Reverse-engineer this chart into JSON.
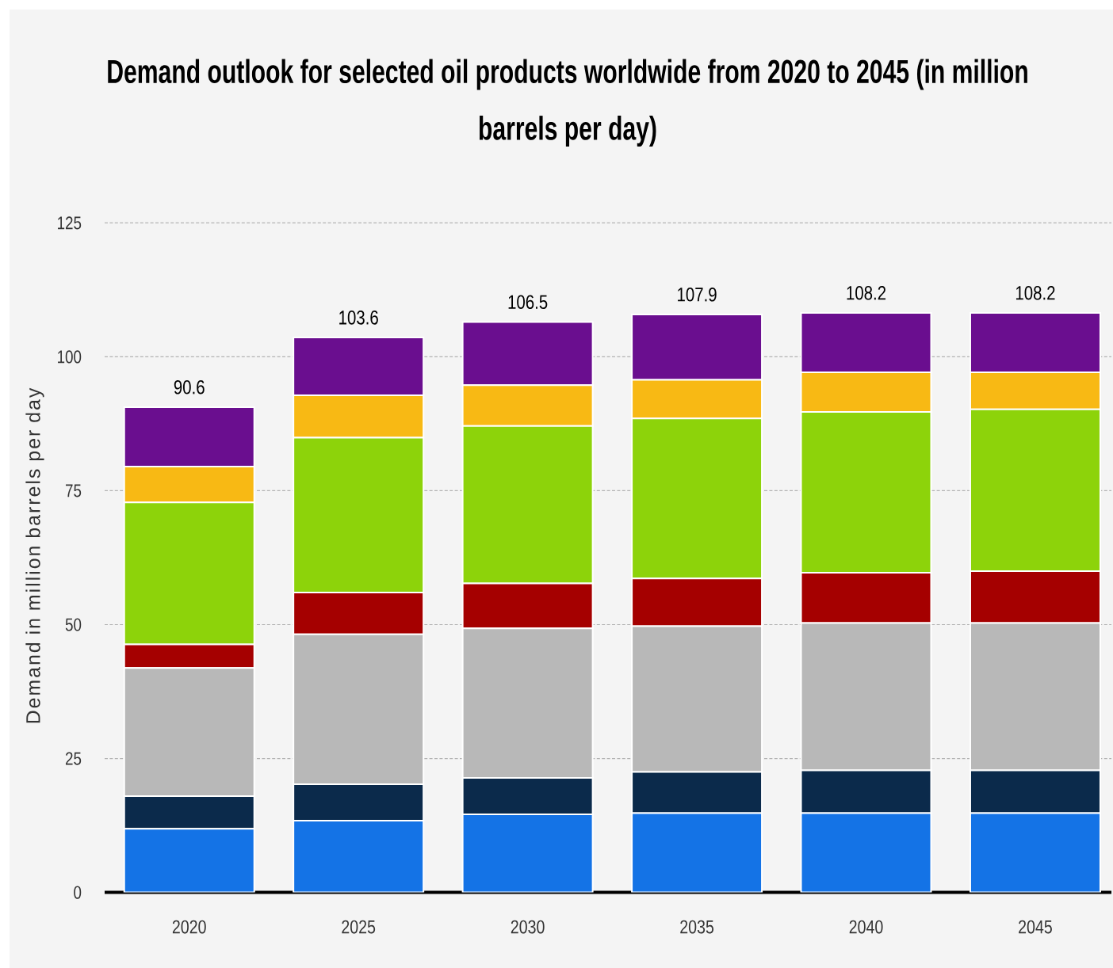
{
  "chart_data": {
    "type": "bar",
    "stacked": true,
    "title": "Demand outlook for selected oil products worldwide from 2020 to 2045 (in million barrels per day)",
    "ylabel": "Demand in million barrels per day",
    "categories": [
      "2020",
      "2025",
      "2030",
      "2035",
      "2040",
      "2045"
    ],
    "series": [
      {
        "color": "#1473e6",
        "values": [
          11.9,
          13.4,
          14.6,
          14.8,
          14.8,
          14.8
        ]
      },
      {
        "color": "#0b2a4b",
        "values": [
          6.1,
          6.8,
          6.8,
          7.7,
          8.0,
          8.0
        ]
      },
      {
        "color": "#b8b8b8",
        "values": [
          23.9,
          28.0,
          27.9,
          27.2,
          27.5,
          27.5
        ]
      },
      {
        "color": "#a50000",
        "values": [
          4.4,
          7.8,
          8.4,
          8.9,
          9.4,
          9.7
        ]
      },
      {
        "color": "#8dd30a",
        "values": [
          26.5,
          28.9,
          29.4,
          29.9,
          30.0,
          30.2
        ]
      },
      {
        "color": "#f8b914",
        "values": [
          6.7,
          7.9,
          7.6,
          7.2,
          7.4,
          6.9
        ]
      },
      {
        "color": "#6a0e8f",
        "values": [
          11.1,
          10.8,
          11.8,
          12.2,
          11.1,
          11.1
        ]
      }
    ],
    "totals": [
      "90.6",
      "103.6",
      "106.5",
      "107.9",
      "108.2",
      "108.2"
    ],
    "ylim": [
      0,
      125
    ],
    "yticks": [
      0,
      25,
      50,
      75,
      100,
      125
    ],
    "grid": "y"
  }
}
